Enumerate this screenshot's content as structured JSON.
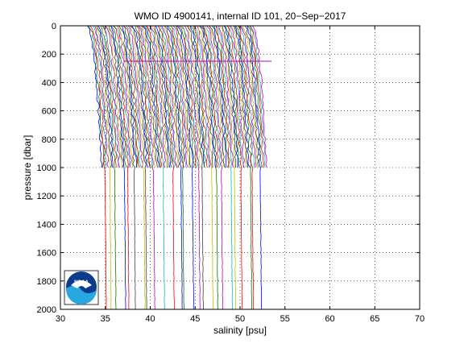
{
  "chart_data": {
    "type": "line",
    "title": "WMO ID 4900141, internal ID 101, 20−Sep−2017",
    "xlabel": "salinity [psu]",
    "ylabel": "pressure [dbar]",
    "xlim": [
      30,
      70
    ],
    "ylim": [
      0,
      2000
    ],
    "y_reversed": true,
    "grid": true,
    "xticks": [
      30,
      35,
      40,
      45,
      50,
      55,
      60,
      65,
      70
    ],
    "yticks": [
      0,
      200,
      400,
      600,
      800,
      1000,
      1200,
      1400,
      1600,
      1800,
      2000
    ],
    "profile_count": 103,
    "salinity_start": 33.0,
    "salinity_step": 0.18,
    "shallow_profiles_max_pressure": 1000,
    "deep_profiles_max_pressure": 2000,
    "spike_profile": {
      "pressure": 250,
      "salinity_from": 37.0,
      "salinity_to": 53.5
    },
    "series_colors": [
      "#0000ff",
      "#008000",
      "#ff0000",
      "#00bfbf",
      "#bf00bf",
      "#bfbf00",
      "#404040"
    ],
    "logo": {
      "text": "NOAA",
      "colors": [
        "#0b3c8c",
        "#29a7e1",
        "#ffffff"
      ]
    }
  }
}
